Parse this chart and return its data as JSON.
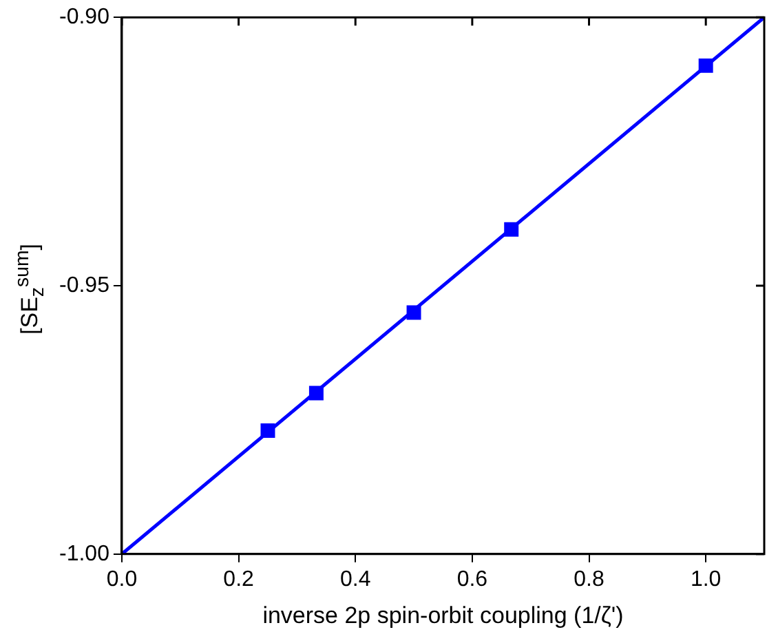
{
  "chart_data": {
    "type": "scatter",
    "xlabel": "inverse 2p spin-orbit coupling (1/ζ')",
    "ylabel": "[SE$_{z}$$^{sum}$]",
    "xlim": [
      0,
      1.1
    ],
    "xticks": [
      {
        "value": 0,
        "label": "0.0"
      },
      {
        "value": 0.2,
        "label": "0.2"
      },
      {
        "value": 0.4,
        "label": "0.4"
      },
      {
        "value": 0.6,
        "label": "0.6"
      },
      {
        "value": 0.8,
        "label": "0.8"
      },
      {
        "value": 1,
        "label": "1.0"
      }
    ],
    "ylim": [
      -1,
      -0.9
    ],
    "yticks": [
      {
        "value": -1,
        "label": "-1.00"
      },
      {
        "value": -0.95,
        "label": "-0.95"
      },
      {
        "value": -0.9,
        "label": "-0.90"
      }
    ],
    "grid": false,
    "legend": false,
    "series": [
      {
        "type": "line",
        "color": "#0000ff",
        "x": [
          0,
          1.1
        ],
        "values": [
          -1,
          -0.9
        ],
        "marker": "none",
        "line_style": "solid"
      },
      {
        "type": "scatter",
        "color": "#0000ff",
        "x": [
          0.25,
          0.333,
          0.5,
          0.667,
          1
        ],
        "values": [
          -0.977,
          -0.97,
          -0.955,
          -0.9395,
          -0.909
        ],
        "marker": "square"
      }
    ]
  }
}
